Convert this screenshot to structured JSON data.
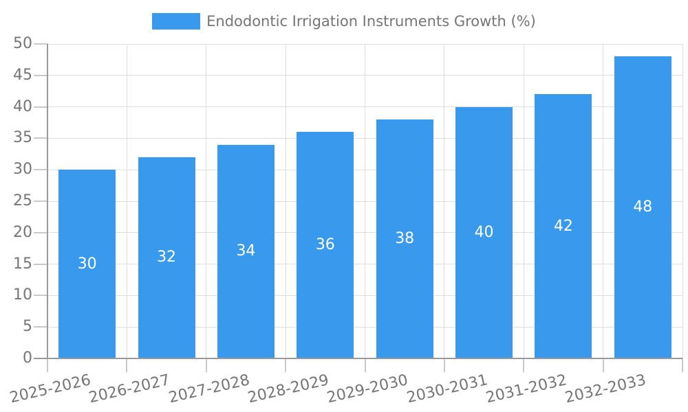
{
  "chart_data": {
    "type": "bar",
    "title": "Endodontic Irrigation Instruments Growth (%)",
    "categories": [
      "2025-2026",
      "2026-2027",
      "2027-2028",
      "2028-2029",
      "2029-2030",
      "2030-2031",
      "2031-2032",
      "2032-2033"
    ],
    "values": [
      30,
      32,
      34,
      36,
      38,
      40,
      42,
      48
    ],
    "xlabel": "",
    "ylabel": "",
    "ylim": [
      0,
      50
    ],
    "ytick_step": 5,
    "yticks": [
      0,
      5,
      10,
      15,
      20,
      25,
      30,
      35,
      40,
      45,
      50
    ],
    "grid": true,
    "legend_position": "top-center",
    "value_label_position": "inside-center",
    "x_label_rotation_deg": -13,
    "colors": {
      "bar": "#3999EC",
      "value_label": "#FFFFFF",
      "axis_label": "#757575",
      "legend_label": "#757575",
      "gridline": "#DEDEDE",
      "tick": "#C9C9C9",
      "axis_line": "#999999",
      "background": "#FFFFFF"
    }
  }
}
